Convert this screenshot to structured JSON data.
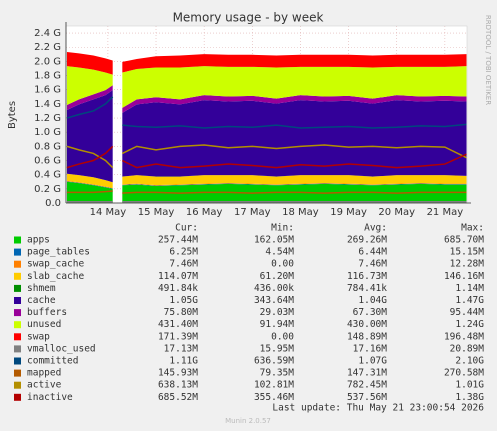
{
  "chart_data": {
    "type": "area",
    "title": "Memory usage - by week",
    "y_label": "Bytes",
    "side_text": "RRDTOOL / TOBI OETIKER",
    "x": [
      13.15,
      13.4,
      13.7,
      13.95,
      14.1,
      14.2,
      14.3,
      14.6,
      15.0,
      15.5,
      16.0,
      16.5,
      17.0,
      17.5,
      18.0,
      18.5,
      19.0,
      19.5,
      20.0,
      20.5,
      21.0,
      21.45
    ],
    "xlim": [
      13.13,
      21.46
    ],
    "xticks": [
      {
        "value": 14,
        "label": "14 May"
      },
      {
        "value": 15,
        "label": "15 May"
      },
      {
        "value": 16,
        "label": "16 May"
      },
      {
        "value": 17,
        "label": "17 May"
      },
      {
        "value": 18,
        "label": "18 May"
      },
      {
        "value": 19,
        "label": "19 May"
      },
      {
        "value": 20,
        "label": "20 May"
      },
      {
        "value": 21,
        "label": "21 May"
      }
    ],
    "ylim": [
      0,
      2.5
    ],
    "yticks": [
      {
        "value": 0,
        "label": "0.0"
      },
      {
        "value": 0.2,
        "label": "0.2 G"
      },
      {
        "value": 0.4,
        "label": "0.4 G"
      },
      {
        "value": 0.6,
        "label": "0.6 G"
      },
      {
        "value": 0.8,
        "label": "0.8 G"
      },
      {
        "value": 1.0,
        "label": "1.0 G"
      },
      {
        "value": 1.2,
        "label": "1.2 G"
      },
      {
        "value": 1.4,
        "label": "1.4 G"
      },
      {
        "value": 1.6,
        "label": "1.6 G"
      },
      {
        "value": 1.8,
        "label": "1.8 G"
      },
      {
        "value": 2.0,
        "label": "2.0 G"
      },
      {
        "value": 2.2,
        "label": "2.2 G"
      },
      {
        "value": 2.4,
        "label": "2.4 G"
      }
    ],
    "grid": true,
    "stats_headers": [
      "Cur:",
      "Min:",
      "Avg:",
      "Max:"
    ],
    "series": [
      {
        "name": "apps",
        "kind": "area",
        "color": "#00CC00",
        "stats": [
          "257.44M",
          "162.05M",
          "269.26M",
          "685.70M"
        ],
        "values": [
          0.3,
          0.28,
          0.25,
          0.22,
          0.2,
          null,
          0.25,
          0.26,
          0.24,
          0.25,
          0.26,
          0.27,
          0.26,
          0.25,
          0.26,
          0.27,
          0.26,
          0.25,
          0.26,
          0.27,
          0.26,
          0.26
        ]
      },
      {
        "name": "page_tables",
        "kind": "area",
        "color": "#0066B3",
        "stats": [
          "6.25M",
          "4.54M",
          "6.44M",
          "15.15M"
        ],
        "values": [
          0.006,
          0.006,
          0.006,
          0.006,
          0.006,
          null,
          0.006,
          0.006,
          0.006,
          0.006,
          0.006,
          0.006,
          0.006,
          0.006,
          0.006,
          0.006,
          0.006,
          0.006,
          0.006,
          0.006,
          0.006,
          0.006
        ]
      },
      {
        "name": "swap_cache",
        "kind": "area",
        "color": "#FF8000",
        "stats": [
          "7.46M",
          "0.00",
          "7.46M",
          "12.28M"
        ],
        "values": [
          0.007,
          0.007,
          0.007,
          0.007,
          0.007,
          null,
          0.007,
          0.007,
          0.007,
          0.007,
          0.007,
          0.007,
          0.007,
          0.007,
          0.007,
          0.007,
          0.007,
          0.007,
          0.007,
          0.007,
          0.007,
          0.007
        ]
      },
      {
        "name": "slab_cache",
        "kind": "area",
        "color": "#FFCC00",
        "stats": [
          "114.07M",
          "61.20M",
          "116.73M",
          "146.16M"
        ],
        "values": [
          0.1,
          0.1,
          0.1,
          0.09,
          0.08,
          null,
          0.11,
          0.12,
          0.12,
          0.11,
          0.12,
          0.11,
          0.12,
          0.11,
          0.12,
          0.11,
          0.12,
          0.11,
          0.12,
          0.11,
          0.12,
          0.11
        ]
      },
      {
        "name": "shmem",
        "kind": "area",
        "color": "#008F00",
        "stats": [
          "491.84k",
          "436.00k",
          "784.41k",
          "1.14M"
        ],
        "values": [
          0.0005,
          0.0005,
          0.0005,
          0.0005,
          0.0005,
          null,
          0.0005,
          0.0005,
          0.0005,
          0.0005,
          0.0005,
          0.0005,
          0.0005,
          0.0005,
          0.0005,
          0.0005,
          0.0005,
          0.0005,
          0.0005,
          0.0005,
          0.0005,
          0.0005
        ]
      },
      {
        "name": "cache",
        "kind": "area",
        "color": "#330099",
        "stats": [
          "1.05G",
          "343.64M",
          "1.04G",
          "1.47G"
        ],
        "values": [
          0.9,
          1.0,
          1.1,
          1.2,
          1.3,
          null,
          0.9,
          1.0,
          1.05,
          1.02,
          1.06,
          1.04,
          1.05,
          1.03,
          1.06,
          1.04,
          1.05,
          1.03,
          1.06,
          1.04,
          1.05,
          1.05
        ]
      },
      {
        "name": "buffers",
        "kind": "area",
        "color": "#990099",
        "stats": [
          "75.80M",
          "29.03M",
          "67.30M",
          "95.44M"
        ],
        "values": [
          0.07,
          0.07,
          0.07,
          0.07,
          0.07,
          null,
          0.07,
          0.07,
          0.07,
          0.07,
          0.07,
          0.07,
          0.07,
          0.07,
          0.07,
          0.07,
          0.07,
          0.07,
          0.07,
          0.07,
          0.07,
          0.07
        ]
      },
      {
        "name": "unused",
        "kind": "area",
        "color": "#CCFF00",
        "stats": [
          "431.40M",
          "91.94M",
          "430.00M",
          "1.24G"
        ],
        "values": [
          0.55,
          0.45,
          0.35,
          0.25,
          0.15,
          null,
          0.5,
          0.43,
          0.42,
          0.45,
          0.41,
          0.42,
          0.41,
          0.44,
          0.4,
          0.42,
          0.41,
          0.44,
          0.4,
          0.42,
          0.41,
          0.43
        ]
      },
      {
        "name": "swap",
        "kind": "area",
        "color": "#FF0000",
        "stats": [
          "171.39M",
          "0.00",
          "148.89M",
          "196.48M"
        ],
        "values": [
          0.2,
          0.2,
          0.2,
          0.2,
          0.2,
          null,
          0.15,
          0.14,
          0.16,
          0.17,
          0.17,
          0.17,
          0.17,
          0.17,
          0.17,
          0.17,
          0.17,
          0.17,
          0.17,
          0.17,
          0.17,
          0.17
        ]
      },
      {
        "name": "vmalloc_used",
        "kind": "line",
        "color": "#808080",
        "stats": [
          "17.13M",
          "15.95M",
          "17.16M",
          "20.89M"
        ],
        "values": [
          0.017,
          0.017,
          0.017,
          0.017,
          0.017,
          null,
          0.017,
          0.017,
          0.017,
          0.017,
          0.017,
          0.017,
          0.017,
          0.017,
          0.017,
          0.017,
          0.017,
          0.017,
          0.017,
          0.017,
          0.017,
          0.017
        ]
      },
      {
        "name": "committed",
        "kind": "line",
        "color": "#00487D",
        "stats": [
          "1.11G",
          "636.59M",
          "1.07G",
          "2.10G"
        ],
        "values": [
          1.2,
          1.25,
          1.3,
          1.4,
          1.5,
          null,
          1.1,
          1.08,
          1.07,
          1.09,
          1.06,
          1.08,
          1.07,
          1.1,
          1.06,
          1.07,
          1.08,
          1.06,
          1.07,
          1.09,
          1.08,
          1.11
        ]
      },
      {
        "name": "mapped",
        "kind": "line",
        "color": "#B35A00",
        "stats": [
          "145.93M",
          "79.35M",
          "147.31M",
          "270.58M"
        ],
        "values": [
          0.15,
          0.15,
          0.15,
          0.16,
          0.17,
          null,
          0.14,
          0.15,
          0.15,
          0.14,
          0.15,
          0.15,
          0.14,
          0.15,
          0.15,
          0.14,
          0.15,
          0.15,
          0.14,
          0.15,
          0.15,
          0.15
        ]
      },
      {
        "name": "active",
        "kind": "line",
        "color": "#B38F00",
        "stats": [
          "638.13M",
          "102.81M",
          "782.45M",
          "1.01G"
        ],
        "values": [
          0.8,
          0.75,
          0.7,
          0.6,
          0.5,
          null,
          0.7,
          0.8,
          0.75,
          0.8,
          0.82,
          0.78,
          0.8,
          0.77,
          0.8,
          0.82,
          0.79,
          0.8,
          0.78,
          0.8,
          0.79,
          0.64
        ]
      },
      {
        "name": "inactive",
        "kind": "line",
        "color": "#B30000",
        "stats": [
          "685.52M",
          "355.46M",
          "537.56M",
          "1.38G"
        ],
        "values": [
          0.5,
          0.55,
          0.6,
          0.7,
          0.8,
          null,
          0.6,
          0.5,
          0.55,
          0.5,
          0.52,
          0.55,
          0.53,
          0.5,
          0.54,
          0.52,
          0.55,
          0.53,
          0.5,
          0.52,
          0.55,
          0.69
        ]
      }
    ],
    "last_update": "Last update: Thu May 21 23:00:54 2026",
    "footer": "Munin 2.0.57"
  }
}
